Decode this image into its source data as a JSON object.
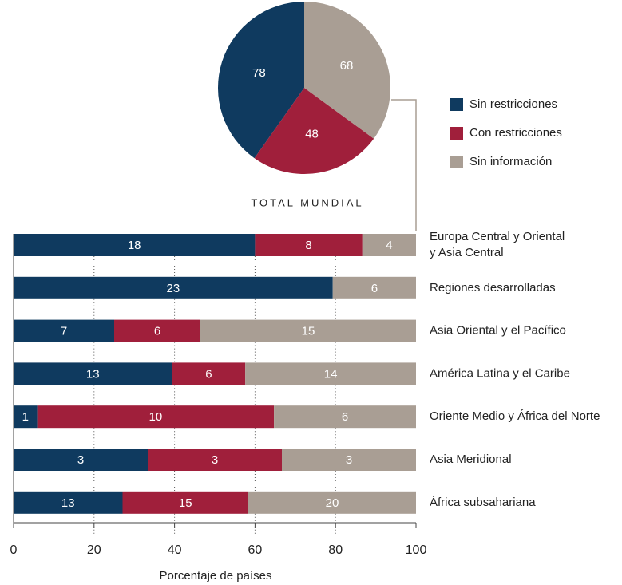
{
  "chart_data": [
    {
      "type": "pie",
      "title": "TOTAL MUNDIAL",
      "legend": "right",
      "categories": [
        "Sin restricciones",
        "Con restricciones",
        "Sin información"
      ],
      "values": [
        78,
        48,
        68
      ],
      "colors": [
        "#0f3a5f",
        "#a01f3b",
        "#a99e94"
      ]
    },
    {
      "type": "bar",
      "orientation": "horizontal",
      "stacking": "percent",
      "grid": true,
      "xlabel": "Porcentaje de países",
      "categories": [
        "Europa Central y Oriental\ny Asia Central",
        "Regiones desarrolladas",
        "Asia Oriental y el Pacífico",
        "América Latina y el Caribe",
        "Oriente Medio y África del Norte",
        "Asia Meridional",
        "África subsahariana"
      ],
      "xlim": [
        0,
        100
      ],
      "xticks": [
        0,
        20,
        40,
        60,
        80,
        100
      ],
      "series": [
        {
          "name": "Sin restricciones",
          "color": "#0f3a5f",
          "values": [
            18,
            23,
            7,
            13,
            1,
            3,
            13
          ]
        },
        {
          "name": "Con restricciones",
          "color": "#a01f3b",
          "values": [
            8,
            null,
            6,
            6,
            10,
            3,
            15
          ]
        },
        {
          "name": "Sin información",
          "color": "#a99e94",
          "values": [
            4,
            6,
            15,
            14,
            6,
            3,
            20
          ]
        }
      ]
    }
  ]
}
